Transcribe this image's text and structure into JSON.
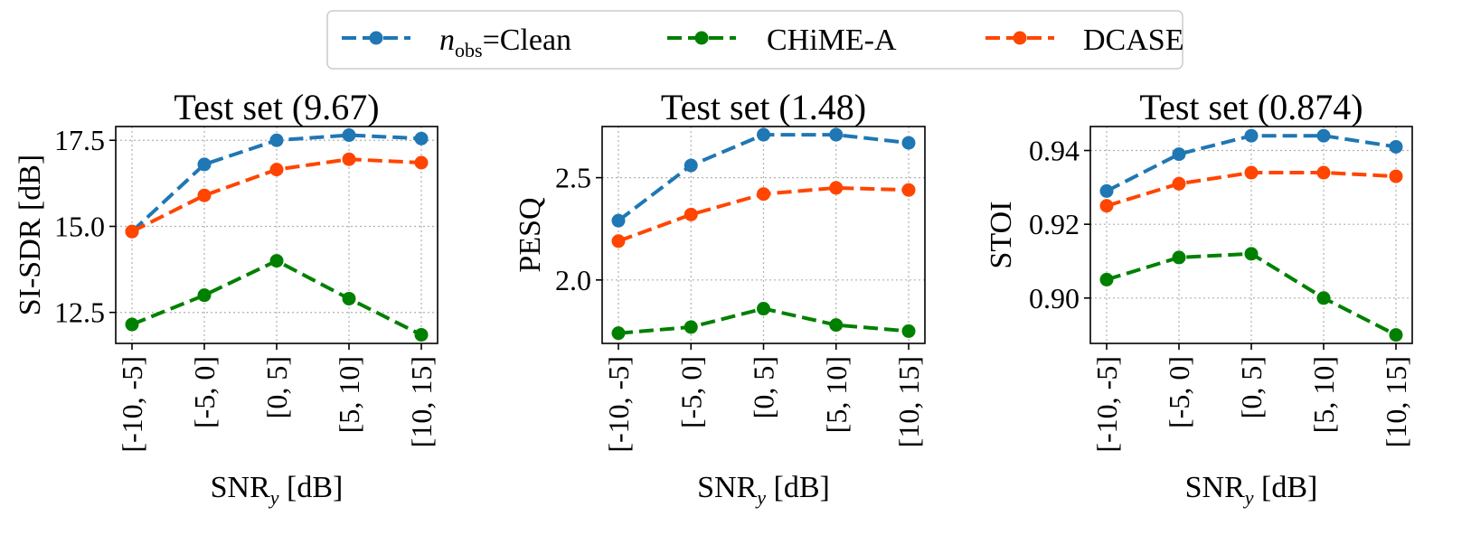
{
  "legend": {
    "entries": [
      {
        "prefix": "n",
        "subscript": "obs",
        "suffix": "=Clean",
        "color": "#1f77b4"
      },
      {
        "prefix": "",
        "subscript": "",
        "suffix": "CHiME-A",
        "color": "#008000"
      },
      {
        "prefix": "",
        "subscript": "",
        "suffix": "DCASE",
        "color": "#ff4500"
      }
    ]
  },
  "xlabel_main": "SNR",
  "xlabel_sub": "y",
  "xlabel_unit": " [dB]",
  "chart_data": [
    {
      "type": "line",
      "title": "Test set (9.67)",
      "ylabel": "SI-SDR [dB]",
      "categories": [
        "[-10, -5]",
        "[-5, 0]",
        "[0, 5]",
        "[5, 10]",
        "[10, 15]"
      ],
      "ylim": [
        11.6,
        17.9
      ],
      "yticks": [
        12.5,
        15.0,
        17.5
      ],
      "ytick_labels": [
        "12.5",
        "15.0",
        "17.5"
      ],
      "grid": true,
      "series": [
        {
          "name": "Clean",
          "color": "#1f77b4",
          "values": [
            14.85,
            16.8,
            17.5,
            17.65,
            17.55
          ]
        },
        {
          "name": "CHiME-A",
          "color": "#008000",
          "values": [
            12.15,
            13.0,
            14.0,
            12.9,
            11.85
          ]
        },
        {
          "name": "DCASE",
          "color": "#ff4500",
          "values": [
            14.85,
            15.9,
            16.65,
            16.95,
            16.85
          ]
        }
      ]
    },
    {
      "type": "line",
      "title": "Test set (1.48)",
      "ylabel": "PESQ",
      "categories": [
        "[-10, -5]",
        "[-5, 0]",
        "[0, 5]",
        "[5, 10]",
        "[10, 15]"
      ],
      "ylim": [
        1.69,
        2.75
      ],
      "yticks": [
        2.0,
        2.5
      ],
      "ytick_labels": [
        "2.0",
        "2.5"
      ],
      "grid": true,
      "series": [
        {
          "name": "Clean",
          "color": "#1f77b4",
          "values": [
            2.29,
            2.56,
            2.71,
            2.71,
            2.67
          ]
        },
        {
          "name": "CHiME-A",
          "color": "#008000",
          "values": [
            1.74,
            1.77,
            1.86,
            1.78,
            1.75
          ]
        },
        {
          "name": "DCASE",
          "color": "#ff4500",
          "values": [
            2.19,
            2.32,
            2.42,
            2.45,
            2.44
          ]
        }
      ]
    },
    {
      "type": "line",
      "title": "Test set (0.874)",
      "ylabel": "STOI",
      "categories": [
        "[-10, -5]",
        "[-5, 0]",
        "[0, 5]",
        "[5, 10]",
        "[10, 15]"
      ],
      "ylim": [
        0.8877,
        0.9465
      ],
      "yticks": [
        0.9,
        0.92,
        0.94
      ],
      "ytick_labels": [
        "0.90",
        "0.92",
        "0.94"
      ],
      "grid": true,
      "series": [
        {
          "name": "Clean",
          "color": "#1f77b4",
          "values": [
            0.929,
            0.939,
            0.944,
            0.944,
            0.941
          ]
        },
        {
          "name": "CHiME-A",
          "color": "#008000",
          "values": [
            0.905,
            0.911,
            0.912,
            0.9,
            0.89
          ]
        },
        {
          "name": "DCASE",
          "color": "#ff4500",
          "values": [
            0.925,
            0.931,
            0.934,
            0.934,
            0.933
          ]
        }
      ]
    }
  ]
}
